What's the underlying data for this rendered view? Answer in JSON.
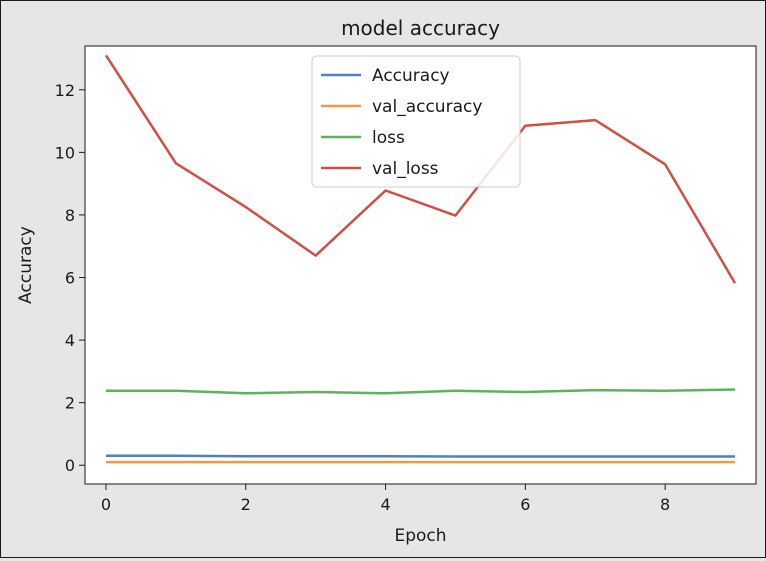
{
  "chart_data": {
    "type": "line",
    "title": "model accuracy",
    "xlabel": "Epoch",
    "ylabel": "Accuracy",
    "x": [
      0,
      1,
      2,
      3,
      4,
      5,
      6,
      7,
      8,
      9
    ],
    "xlim": [
      -0.3,
      9.3
    ],
    "ylim": [
      -0.6,
      13.4
    ],
    "xticks": [
      0,
      2,
      4,
      6,
      8
    ],
    "yticks": [
      0,
      2,
      4,
      6,
      8,
      10,
      12
    ],
    "grid": false,
    "legend_position": "top-center",
    "series": [
      {
        "name": "Accuracy",
        "color": "#4c82c3",
        "values": [
          0.3,
          0.3,
          0.29,
          0.29,
          0.29,
          0.28,
          0.28,
          0.28,
          0.28,
          0.28
        ]
      },
      {
        "name": "val_accuracy",
        "color": "#f79646",
        "values": [
          0.1,
          0.1,
          0.1,
          0.1,
          0.1,
          0.1,
          0.1,
          0.1,
          0.1,
          0.1
        ]
      },
      {
        "name": "loss",
        "color": "#5db35b",
        "values": [
          2.38,
          2.38,
          2.3,
          2.34,
          2.3,
          2.38,
          2.34,
          2.4,
          2.38,
          2.42
        ]
      },
      {
        "name": "val_loss",
        "color": "#cf4f46",
        "values": [
          13.1,
          9.65,
          8.25,
          6.7,
          8.78,
          7.98,
          10.85,
          11.03,
          9.62,
          5.82
        ]
      }
    ]
  }
}
